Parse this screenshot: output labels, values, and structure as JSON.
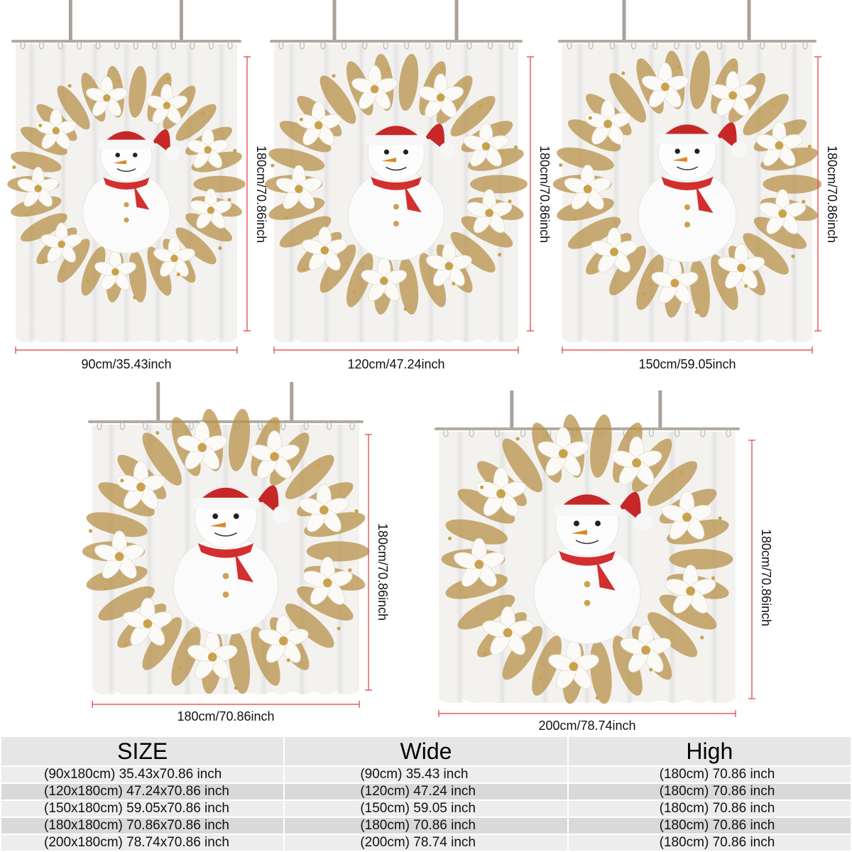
{
  "curtains": [
    {
      "width_label": "90cm/35.43inch",
      "height_label": "180cm/70.86inch"
    },
    {
      "width_label": "120cm/47.24inch",
      "height_label": "180cm/70.86inch"
    },
    {
      "width_label": "150cm/59.05inch",
      "height_label": "180cm/70.86inch"
    },
    {
      "width_label": "180cm/70.86inch",
      "height_label": "180cm/70.86inch"
    },
    {
      "width_label": "200cm/78.74inch",
      "height_label": "180cm/70.86inch"
    }
  ],
  "table": {
    "headers": [
      "SIZE",
      "Wide",
      "High"
    ],
    "rows": [
      [
        "(90x180cm) 35.43x70.86 inch",
        "(90cm) 35.43 inch",
        "(180cm) 70.86 inch"
      ],
      [
        "(120x180cm) 47.24x70.86 inch",
        "(120cm) 47.24 inch",
        "(180cm) 70.86 inch"
      ],
      [
        "(150x180cm) 59.05x70.86 inch",
        "(150cm) 59.05 inch",
        "(180cm) 70.86 inch"
      ],
      [
        "(180x180cm) 70.86x70.86 inch",
        "(180cm) 70.86 inch",
        "(180cm) 70.86 inch"
      ],
      [
        "(200x180cm) 78.74x70.86 inch",
        "(200cm) 78.74 inch",
        "(180cm) 70.86 inch"
      ]
    ]
  },
  "colors": {
    "dimension_line": "#e03a3a",
    "santa_hat": "#c62828",
    "scarf": "#d32f2f",
    "gold_leaves": "#b8904a",
    "table_header_bg": "#e6e6e6",
    "table_row_light": "#ededed",
    "table_row_dark": "#d9d9d9"
  }
}
